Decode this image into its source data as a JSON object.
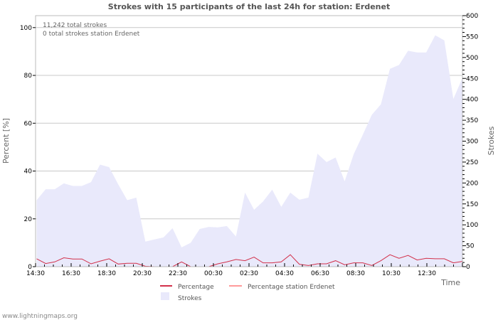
{
  "chart_data": {
    "type": "area",
    "title": "Strokes with 15 participants of the last 24h for station: Erdenet",
    "xlabel": "Time",
    "ylabel_left": "Percent   [%]",
    "ylabel_right": "Strokes",
    "ylim_left": [
      0,
      105
    ],
    "ylim_right": [
      0,
      600
    ],
    "left_ticks": [
      "0",
      "20",
      "40",
      "60",
      "80",
      "100"
    ],
    "right_ticks": [
      "0",
      "50",
      "100",
      "150",
      "200",
      "250",
      "300",
      "350",
      "400",
      "450",
      "500",
      "550",
      "600"
    ],
    "x_ticks": [
      "14:30",
      "16:30",
      "18:30",
      "20:30",
      "22:30",
      "00:30",
      "02:30",
      "04:30",
      "06:30",
      "08:30",
      "10:30",
      "12:30"
    ],
    "grid": true,
    "info_lines": [
      "11,242 total strokes",
      "0 total strokes station Erdenet"
    ],
    "series": [
      {
        "name": "Percentage",
        "color": "#d2304a",
        "axis": "left",
        "values": [
          3.3,
          1.3,
          2,
          3.7,
          3.2,
          3.2,
          1.2,
          2.3,
          3.3,
          1.1,
          1.4,
          1.4,
          0.2,
          0,
          0,
          0,
          2,
          0,
          0,
          0,
          1.2,
          2,
          3,
          2.5,
          4,
          1.6,
          1.6,
          2,
          5,
          1,
          0.5,
          1.2,
          1.2,
          2.5,
          0.8,
          1.6,
          1.6,
          0.5,
          2.5,
          5,
          3.5,
          4.7,
          2.8,
          3.5,
          3.3,
          3.3,
          1.6,
          2.2
        ]
      },
      {
        "name": "Percentage station Erdenet",
        "color": "#ff9a9a",
        "axis": "left",
        "values": [
          0,
          0,
          0,
          0,
          0,
          0,
          0,
          0,
          0,
          0,
          0,
          0,
          0,
          0,
          0,
          0,
          0,
          0,
          0,
          0,
          0,
          0,
          0,
          0,
          0,
          0,
          0,
          0,
          0,
          0,
          0,
          0,
          0,
          0,
          0,
          0,
          0,
          0,
          0,
          0,
          0,
          0,
          0,
          0,
          0,
          0,
          0,
          0
        ]
      },
      {
        "name": "Strokes",
        "color": "#e9e9fb",
        "axis": "right",
        "values": [
          159,
          185,
          185,
          199,
          193,
          193,
          202,
          244,
          238,
          197,
          159,
          165,
          60,
          65,
          70,
          92,
          46,
          57,
          90,
          95,
          94,
          97,
          72,
          177,
          136,
          156,
          184,
          143,
          177,
          160,
          165,
          270,
          250,
          261,
          204,
          269,
          315,
          363,
          388,
          473,
          482,
          516,
          512,
          512,
          553,
          541,
          401,
          451
        ]
      }
    ],
    "legend_position": "bottom"
  },
  "footer": "www.lightningmaps.org"
}
